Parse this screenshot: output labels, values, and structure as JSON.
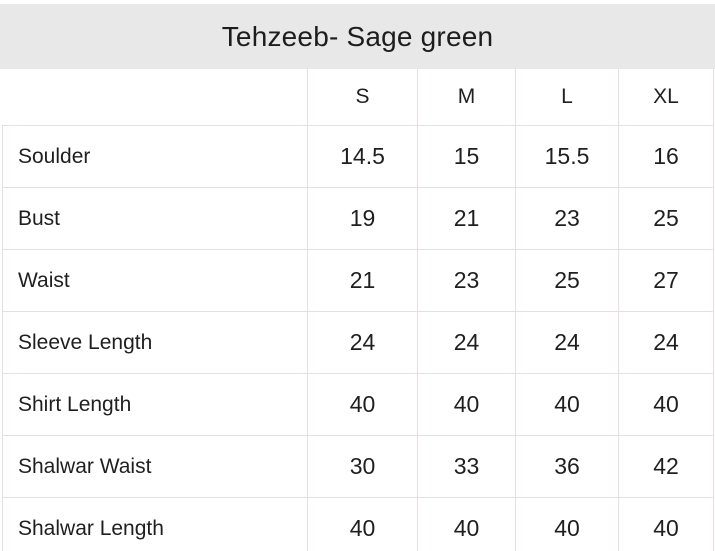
{
  "title": "Tehzeeb- Sage green",
  "table": {
    "columns": [
      "S",
      "M",
      "L",
      "XL"
    ],
    "rows": [
      {
        "label": "Soulder",
        "values": [
          "14.5",
          "15",
          "15.5",
          "16"
        ]
      },
      {
        "label": "Bust",
        "values": [
          "19",
          "21",
          "23",
          "25"
        ]
      },
      {
        "label": "Waist",
        "values": [
          "21",
          "23",
          "25",
          "27"
        ]
      },
      {
        "label": "Sleeve Length",
        "values": [
          "24",
          "24",
          "24",
          "24"
        ]
      },
      {
        "label": "Shirt Length",
        "values": [
          "40",
          "40",
          "40",
          "40"
        ]
      },
      {
        "label": "Shalwar Waist",
        "values": [
          "30",
          "33",
          "36",
          "42"
        ]
      },
      {
        "label": "Shalwar Length",
        "values": [
          "40",
          "40",
          "40",
          "40"
        ]
      }
    ]
  },
  "chart_data": {
    "type": "table",
    "title": "Tehzeeb- Sage green",
    "columns": [
      "S",
      "M",
      "L",
      "XL"
    ],
    "row_labels": [
      "Soulder",
      "Bust",
      "Waist",
      "Sleeve Length",
      "Shirt Length",
      "Shalwar Waist",
      "Shalwar Length"
    ],
    "values": [
      [
        14.5,
        15,
        15.5,
        16
      ],
      [
        19,
        21,
        23,
        25
      ],
      [
        21,
        23,
        25,
        27
      ],
      [
        24,
        24,
        24,
        24
      ],
      [
        40,
        40,
        40,
        40
      ],
      [
        30,
        33,
        36,
        42
      ],
      [
        40,
        40,
        40,
        40
      ]
    ]
  },
  "colors": {
    "banner_background": "#e8e8e8",
    "table_border": "#eadddd",
    "text": "#1f1f1f",
    "page_background": "#ffffff"
  }
}
